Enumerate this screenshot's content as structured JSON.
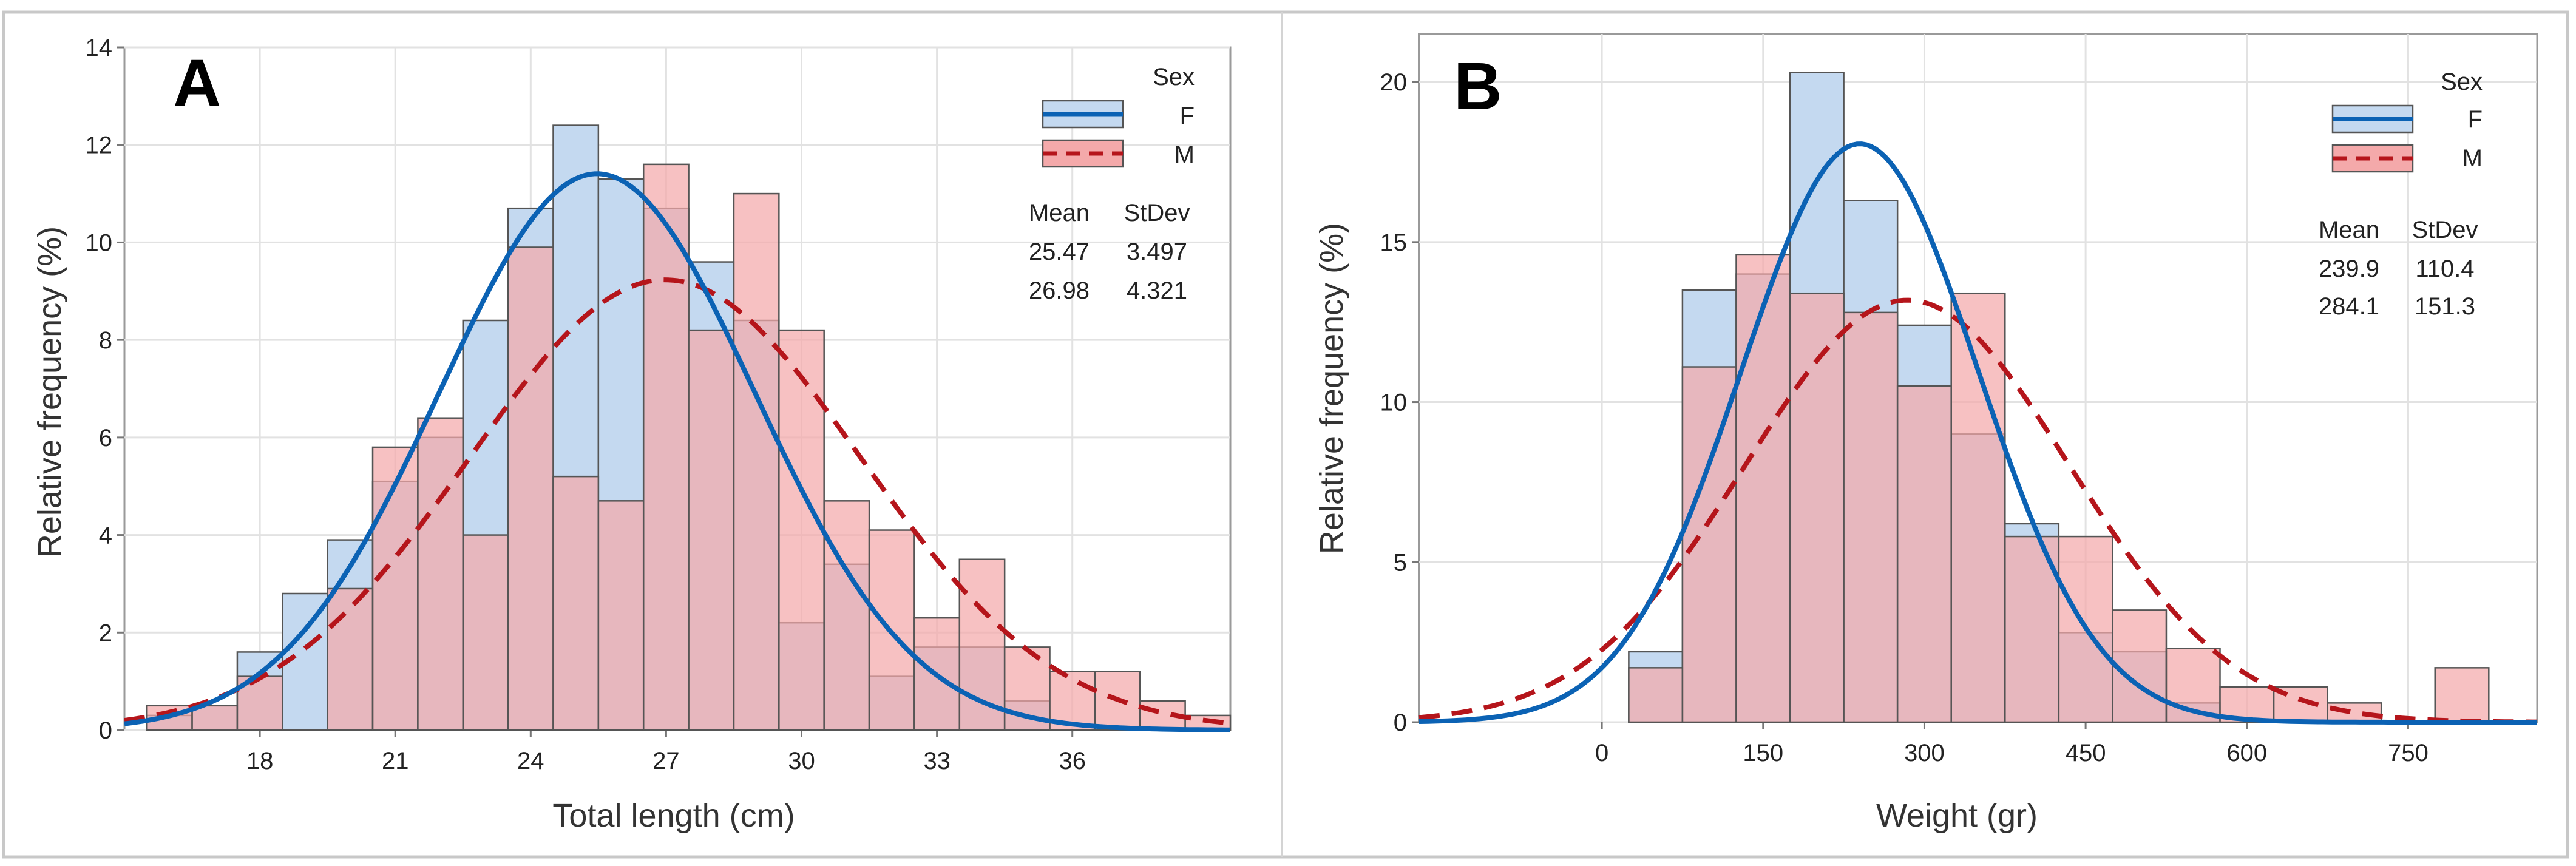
{
  "chart_data": [
    {
      "panel": "A",
      "type": "histogram",
      "xlabel": "Total length (cm)",
      "ylabel": "Relative frequency (%)",
      "xlim": [
        15,
        39.5
      ],
      "ylim": [
        0,
        14
      ],
      "xticks": [
        18,
        21,
        24,
        27,
        30,
        33,
        36
      ],
      "yticks": [
        0,
        2,
        4,
        6,
        8,
        10,
        12,
        14
      ],
      "bin_edges": [
        15.5,
        16.5,
        17.5,
        18.5,
        19.5,
        20.5,
        21.5,
        22.5,
        23.5,
        24.5,
        25.5,
        26.5,
        27.5,
        28.5,
        29.5,
        30.5,
        31.5,
        32.5,
        33.5,
        34.5,
        35.5,
        36.5,
        37.5,
        38.5,
        39.5
      ],
      "legend_title": "Sex",
      "stats_header": [
        "Mean",
        "StDev"
      ],
      "series": [
        {
          "name": "F",
          "mean": 25.47,
          "stdev": 3.497,
          "mean_label": "25.47",
          "stdev_label": "3.497",
          "values": [
            0.3,
            0.5,
            1.6,
            2.8,
            3.9,
            5.1,
            6.0,
            8.4,
            10.7,
            12.4,
            11.3,
            10.7,
            9.6,
            8.4,
            2.2,
            3.4,
            1.1,
            1.7,
            1.7,
            0.6,
            0,
            0,
            0,
            0
          ]
        },
        {
          "name": "M",
          "mean": 26.98,
          "stdev": 4.321,
          "mean_label": "26.98",
          "stdev_label": "4.321",
          "values": [
            0.5,
            0.5,
            1.1,
            0,
            2.9,
            5.8,
            6.4,
            4.0,
            9.9,
            5.2,
            4.7,
            11.6,
            8.2,
            11.0,
            8.2,
            4.7,
            4.1,
            2.3,
            3.5,
            1.7,
            1.2,
            1.2,
            0.6,
            0.3
          ]
        }
      ]
    },
    {
      "panel": "B",
      "type": "histogram",
      "xlabel": "Weight (gr)",
      "ylabel": "Relative frequency (%)",
      "xlim": [
        -170,
        870
      ],
      "ylim": [
        0,
        21.5
      ],
      "xticks": [
        0,
        150,
        300,
        450,
        600,
        750
      ],
      "yticks": [
        0,
        5,
        10,
        15,
        20
      ],
      "bin_edges": [
        25,
        75,
        125,
        175,
        225,
        275,
        325,
        375,
        425,
        475,
        525,
        575,
        625,
        675,
        725,
        775,
        825
      ],
      "legend_title": "Sex",
      "stats_header": [
        "Mean",
        "StDev"
      ],
      "series": [
        {
          "name": "F",
          "mean": 239.9,
          "stdev": 110.4,
          "mean_label": "239.9",
          "stdev_label": "110.4",
          "values": [
            2.2,
            13.5,
            14.0,
            20.3,
            16.3,
            12.4,
            9.0,
            6.2,
            2.8,
            2.2,
            0.6,
            0,
            0,
            0,
            0,
            0
          ]
        },
        {
          "name": "M",
          "mean": 284.1,
          "stdev": 151.3,
          "mean_label": "284.1",
          "stdev_label": "151.3",
          "values": [
            1.7,
            11.1,
            14.6,
            13.4,
            12.8,
            10.5,
            13.4,
            5.8,
            5.8,
            3.5,
            2.3,
            1.1,
            1.1,
            0.6,
            0,
            1.7
          ]
        }
      ]
    }
  ],
  "colors": {
    "f_fill": "#c4d9f0",
    "f_line": "#0b62b4",
    "m_fill": "#f4a9aa",
    "m_line": "#b5151b",
    "overlap_fill": "#dcb0ba",
    "bar_stroke": "#555555",
    "grid": "#e2e2e2"
  }
}
